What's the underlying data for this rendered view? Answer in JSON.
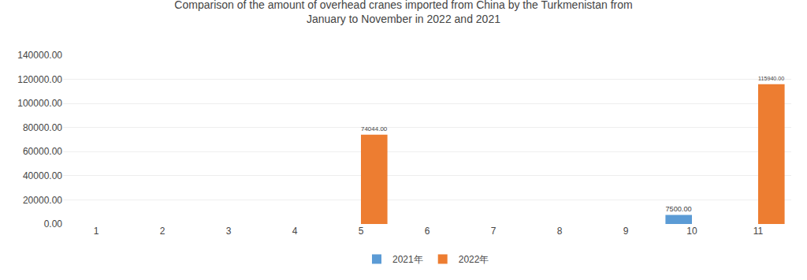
{
  "chart_data": {
    "type": "bar",
    "title": "Comparison of the amount of overhead cranes imported from China by the Turkmenistan from\nJanuary to November in 2022 and 2021",
    "categories": [
      "1",
      "2",
      "3",
      "4",
      "5",
      "6",
      "7",
      "8",
      "9",
      "10",
      "11"
    ],
    "series": [
      {
        "name": "2021年",
        "color": "#5B9BD5",
        "values": [
          0,
          0,
          0,
          0,
          0,
          0,
          0,
          0,
          0,
          7500.0,
          0
        ],
        "value_labels": [
          null,
          null,
          null,
          null,
          null,
          null,
          null,
          null,
          null,
          "7500.00",
          null
        ]
      },
      {
        "name": "2022年",
        "color": "#ED7D31",
        "values": [
          0,
          0,
          0,
          0,
          74044.0,
          0,
          0,
          0,
          0,
          0,
          115940.0
        ],
        "value_labels": [
          null,
          null,
          null,
          null,
          "74044.00",
          null,
          null,
          null,
          null,
          null,
          "115940.00"
        ]
      }
    ],
    "ylim": [
      0,
      140000
    ],
    "yticks": [
      {
        "value": 0,
        "label": "0.00"
      },
      {
        "value": 20000,
        "label": "20000.00"
      },
      {
        "value": 40000,
        "label": "40000.00"
      },
      {
        "value": 60000,
        "label": "60000.00"
      },
      {
        "value": 80000,
        "label": "80000.00"
      },
      {
        "value": 100000,
        "label": "100000.00"
      },
      {
        "value": 120000,
        "label": "120000.00"
      },
      {
        "value": 140000,
        "label": "140000.00"
      }
    ],
    "grid": true,
    "legend": "bottom",
    "data_labels": true
  }
}
